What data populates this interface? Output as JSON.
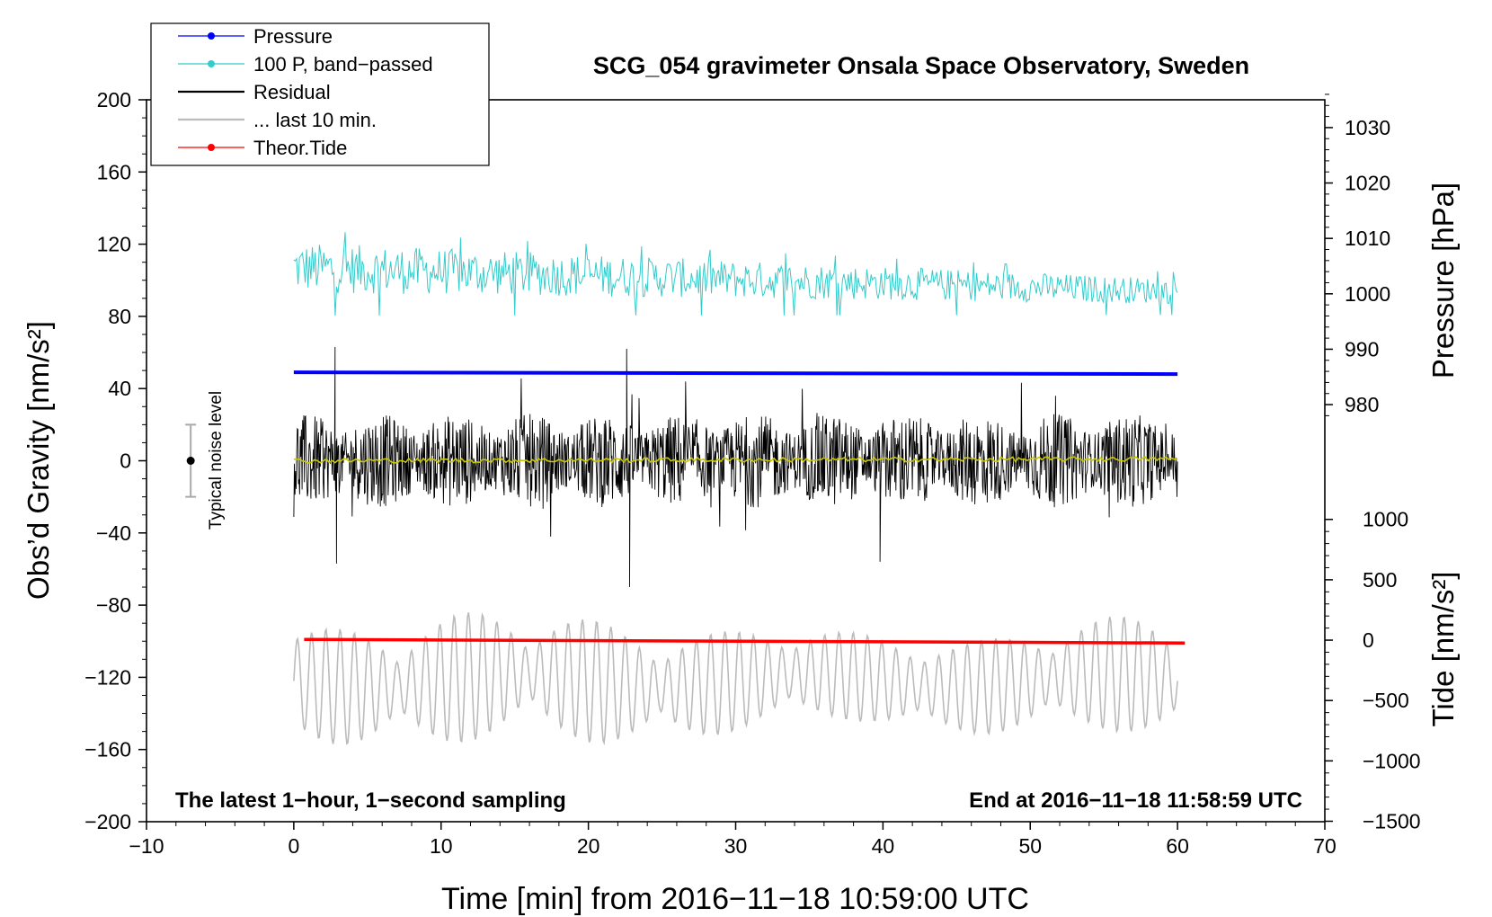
{
  "chart_data": {
    "type": "line",
    "title": "SCG_054 gravimeter Onsala Space Observatory, Sweden",
    "xlabel": "Time [min] from 2016−11−18 10:59:00 UTC",
    "ylabel_left": "Obs’d Gravity [nm/s²]",
    "ylabel_right_top": "Pressure [hPa]",
    "ylabel_right_bottom": "Tide [nm/s²]",
    "xlim": [
      -10,
      70
    ],
    "ylim": [
      -200,
      200
    ],
    "x_ticks": [
      "−10",
      "0",
      "10",
      "20",
      "30",
      "40",
      "50",
      "60",
      "70"
    ],
    "y_ticks": [
      "200",
      "160",
      "120",
      "80",
      "40",
      "0",
      "−40",
      "−80",
      "−120",
      "−160",
      "−200"
    ],
    "pressure_axis": {
      "ticks": [
        "1030",
        "1020",
        "1010",
        "1000",
        "990",
        "980"
      ],
      "values": [
        1030,
        1020,
        1010,
        1000,
        990,
        980
      ],
      "gravity_at_1030": 184.6,
      "gravity_per_hPa": 3.07
    },
    "tide_axis": {
      "ticks": [
        "1000",
        "500",
        "0",
        "−500",
        "−1000",
        "−1500"
      ],
      "values": [
        1000,
        500,
        0,
        -500,
        -1000,
        -1500
      ],
      "gravity_at_0": -99.4,
      "gravity_per_unit": 0.0669
    },
    "legend": {
      "position": "top-left",
      "entries": [
        {
          "label": "Pressure",
          "color": "#0000ff",
          "style": "line-dot"
        },
        {
          "label": "100 P, band−passed",
          "color": "#33cccc",
          "style": "line-dot"
        },
        {
          "label": "Residual",
          "color": "#000000",
          "style": "line"
        },
        {
          "label": "... last 10 min.",
          "color": "#bbbbbb",
          "style": "line"
        },
        {
          "label": "Theor.Tide",
          "color": "#ff0000",
          "style": "line-dot"
        }
      ]
    },
    "annotations": {
      "bottom_left": "The latest 1−hour, 1−second sampling",
      "bottom_right": "End at 2016−11−18 11:58:59 UTC",
      "noise_label": "Typical noise level",
      "noise_level": {
        "x": -7,
        "center": 0,
        "half_range": 20
      }
    },
    "series": [
      {
        "name": "Pressure",
        "color": "#0000ff",
        "x_range": [
          0,
          60
        ],
        "y_start": 49,
        "y_end": 48
      },
      {
        "name": "100 P, band−passed",
        "color": "#33cccc",
        "x_range": [
          0,
          60
        ],
        "center_start": 107,
        "center_end": 94,
        "amplitude_start": 14,
        "amplitude_end": 7
      },
      {
        "name": "Residual",
        "color": "#000000",
        "x_range": [
          0,
          60
        ],
        "center": 0,
        "amplitude": 26,
        "spikes": [
          {
            "x": 2.8,
            "y": 63
          },
          {
            "x": 22.6,
            "y": 62
          },
          {
            "x": 22.8,
            "y": -70
          },
          {
            "x": 39.8,
            "y": -56
          },
          {
            "x": 2.9,
            "y": -57
          }
        ]
      },
      {
        "name": "Residual running mean",
        "color": "#c8c800",
        "x_range": [
          0,
          60
        ],
        "y_start": 0,
        "y_end": 1
      },
      {
        "name": "... last 10 min.",
        "color": "#bbbbbb",
        "x_range": [
          0,
          60
        ],
        "center": -122,
        "amplitude": 36
      },
      {
        "name": "Theor.Tide",
        "color": "#ff0000",
        "x_range": [
          0.7,
          60.5
        ],
        "y_start": -99,
        "y_end": -101
      }
    ]
  }
}
